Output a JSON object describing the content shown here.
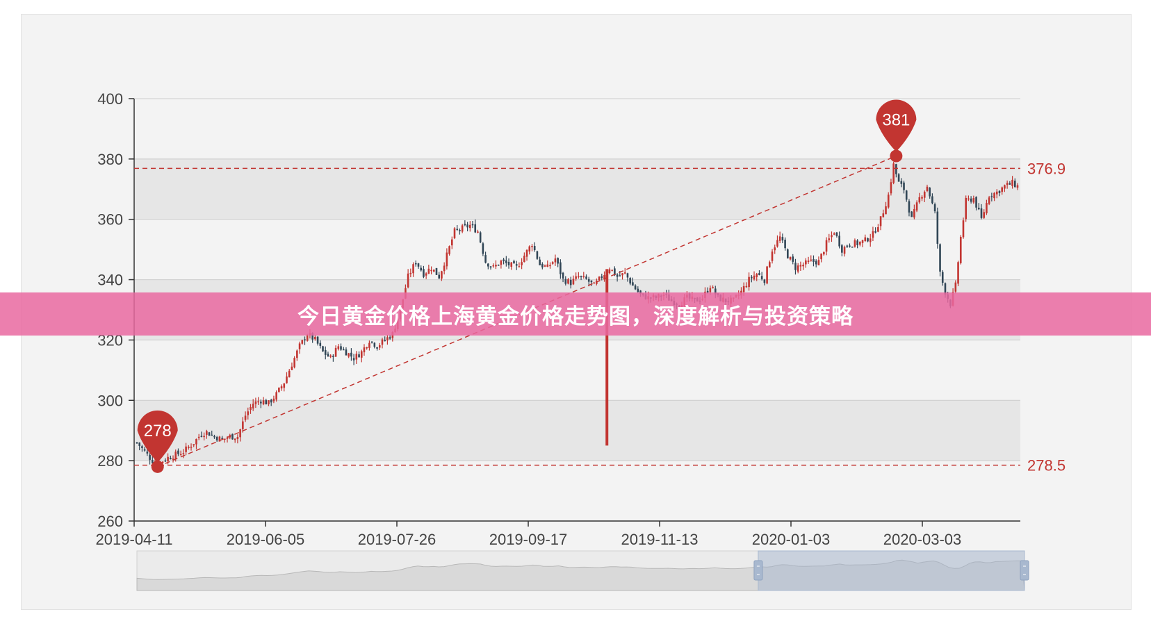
{
  "banner": {
    "title": "今日黄金价格上海黄金价格走势图，深度解析与投资策略"
  },
  "chart_data": {
    "type": "candlestick",
    "x_ticks": [
      "2019-04-11",
      "2019-06-05",
      "2019-07-26",
      "2019-09-17",
      "2019-11-13",
      "2020-01-03",
      "2020-03-03"
    ],
    "y_ticks": [
      260,
      280,
      300,
      320,
      340,
      360,
      380,
      400
    ],
    "ylim": [
      260,
      400
    ],
    "grid": "alternating horizontal bands",
    "close_path": [
      [
        0,
        286
      ],
      [
        2,
        284
      ],
      [
        4,
        282
      ],
      [
        6,
        280
      ],
      [
        9,
        279.5
      ],
      [
        12,
        281
      ],
      [
        15,
        282
      ],
      [
        18,
        283
      ],
      [
        22,
        286
      ],
      [
        25,
        289
      ],
      [
        27,
        289.5
      ],
      [
        30,
        288
      ],
      [
        33,
        287
      ],
      [
        36,
        288
      ],
      [
        39,
        288
      ],
      [
        42,
        295
      ],
      [
        45,
        299
      ],
      [
        48,
        300
      ],
      [
        51,
        299
      ],
      [
        54,
        302
      ],
      [
        57,
        306
      ],
      [
        60,
        312
      ],
      [
        63,
        318
      ],
      [
        66,
        322
      ],
      [
        69,
        320
      ],
      [
        72,
        316
      ],
      [
        75,
        314
      ],
      [
        78,
        318
      ],
      [
        81,
        316
      ],
      [
        84,
        314
      ],
      [
        87,
        316
      ],
      [
        90,
        320
      ],
      [
        93,
        318
      ],
      [
        96,
        320
      ],
      [
        99,
        322
      ],
      [
        102,
        330
      ],
      [
        105,
        341
      ],
      [
        108,
        346
      ],
      [
        111,
        342
      ],
      [
        114,
        344
      ],
      [
        117,
        341
      ],
      [
        120,
        348
      ],
      [
        123,
        356
      ],
      [
        126,
        357
      ],
      [
        129,
        358
      ],
      [
        132,
        356
      ],
      [
        135,
        346
      ],
      [
        138,
        344
      ],
      [
        141,
        346
      ],
      [
        144,
        345
      ],
      [
        147,
        344
      ],
      [
        150,
        348
      ],
      [
        153,
        352
      ],
      [
        156,
        345
      ],
      [
        159,
        344
      ],
      [
        162,
        347
      ],
      [
        165,
        340
      ],
      [
        168,
        339
      ],
      [
        171,
        341
      ],
      [
        174,
        340
      ],
      [
        177,
        338
      ],
      [
        180,
        341
      ],
      [
        183,
        344
      ],
      [
        186,
        341
      ],
      [
        189,
        342
      ],
      [
        192,
        338
      ],
      [
        195,
        335
      ],
      [
        198,
        334
      ],
      [
        201,
        334
      ],
      [
        204,
        335
      ],
      [
        207,
        333
      ],
      [
        210,
        332
      ],
      [
        213,
        334
      ],
      [
        216,
        333
      ],
      [
        219,
        334
      ],
      [
        222,
        338
      ],
      [
        225,
        334
      ],
      [
        228,
        333
      ],
      [
        231,
        333
      ],
      [
        234,
        336
      ],
      [
        237,
        340
      ],
      [
        240,
        342
      ],
      [
        243,
        340
      ],
      [
        246,
        350
      ],
      [
        249,
        354
      ],
      [
        252,
        348
      ],
      [
        255,
        344
      ],
      [
        258,
        345
      ],
      [
        261,
        346
      ],
      [
        264,
        346
      ],
      [
        267,
        352
      ],
      [
        270,
        356
      ],
      [
        273,
        350
      ],
      [
        276,
        352
      ],
      [
        279,
        352
      ],
      [
        282,
        353
      ],
      [
        285,
        355
      ],
      [
        288,
        360
      ],
      [
        291,
        368
      ],
      [
        293,
        378
      ],
      [
        295,
        372
      ],
      [
        297,
        370
      ],
      [
        300,
        360
      ],
      [
        303,
        367
      ],
      [
        306,
        371
      ],
      [
        309,
        362
      ],
      [
        311,
        342
      ],
      [
        313,
        336
      ],
      [
        315,
        332
      ],
      [
        317,
        338
      ],
      [
        319,
        354
      ],
      [
        321,
        366
      ],
      [
        324,
        367
      ],
      [
        327,
        360
      ],
      [
        330,
        368
      ],
      [
        333,
        369
      ],
      [
        336,
        371
      ],
      [
        339,
        372
      ],
      [
        341,
        371
      ]
    ],
    "markers": [
      {
        "type": "min",
        "index": 8,
        "value": 278,
        "label": "278"
      },
      {
        "type": "max",
        "index": 294,
        "value": 381,
        "label": "381"
      }
    ],
    "mark_lines": [
      {
        "value": 376.9,
        "label": "376.9"
      },
      {
        "value": 278.5,
        "label": "278.5"
      }
    ],
    "spike": {
      "index": 182,
      "low": 285
    },
    "trend_line": {
      "from": [
        8,
        278
      ],
      "to": [
        294,
        381
      ]
    },
    "zoom_range": [
      0.7,
      1.0
    ],
    "colors": {
      "up": "#c23531",
      "down": "#314656",
      "grid_band": "#e6e6e6",
      "slider": "#c8d1dd"
    }
  }
}
